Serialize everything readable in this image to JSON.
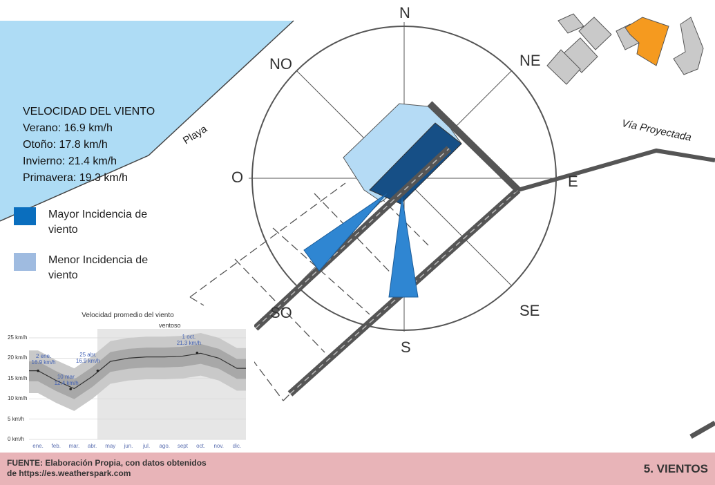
{
  "compass": {
    "N": "N",
    "NE": "NE",
    "E": "E",
    "SE": "SE",
    "S": "S",
    "SO": "SO",
    "O": "O",
    "NO": "NO"
  },
  "map_labels": {
    "beach": "Playa",
    "road": "Vía Proyectada"
  },
  "wind_speed": {
    "title": "VELOCIDAD  DEL VIENTO",
    "summer": "Verano: 16.9 km/h",
    "autumn": "Otoño: 17.8 km/h",
    "winter": "Invierno: 21.4 km/h",
    "spring": "Primavera: 19.3 km/h"
  },
  "legend": {
    "major": "Mayor Incidencia de viento",
    "minor": "Menor Incidencia de viento",
    "major_color": "#0a6ebe",
    "minor_color": "#9fbbe0"
  },
  "colors": {
    "sea": "#aedcf5",
    "building": "#c9c9c9",
    "highlight_building": "#f59a1f",
    "dark_blue": "#164f86",
    "light_blue": "#b5dbf5",
    "arrow_blue": "#2f86d2",
    "road": "#555555",
    "footer": "#e8b4b8"
  },
  "footer": {
    "source": "FUENTE: Elaboración Propia, con datos obtenidos de https://es.weatherspark.com",
    "title": "5. VIENTOS"
  },
  "chart_data": {
    "type": "area",
    "title": "Velocidad promedio del viento",
    "season_label": "ventoso",
    "categories": [
      "ene.",
      "feb.",
      "mar.",
      "abr.",
      "may",
      "jun.",
      "jul.",
      "ago.",
      "sept",
      "oct.",
      "nov.",
      "dic."
    ],
    "y_ticks": [
      "25 km/h",
      "20 km/h",
      "15 km/h",
      "10 km/h",
      "5 km/h",
      "0 km/h"
    ],
    "ylim": [
      0,
      25
    ],
    "series": [
      {
        "values": [
          16.9,
          14.5,
          12.5,
          15.5,
          19.2,
          20.0,
          20.3,
          20.3,
          20.5,
          21.2,
          20.0,
          17.5
        ]
      }
    ],
    "annotations": [
      {
        "date": "2 ene.",
        "value": "16.9 km/h"
      },
      {
        "date": "10 mar.",
        "value": "12.4 km/h"
      },
      {
        "date": "25 abr.",
        "value": "16.9 km/h"
      },
      {
        "date": "1 oct.",
        "value": "21.3 km/h"
      }
    ]
  }
}
